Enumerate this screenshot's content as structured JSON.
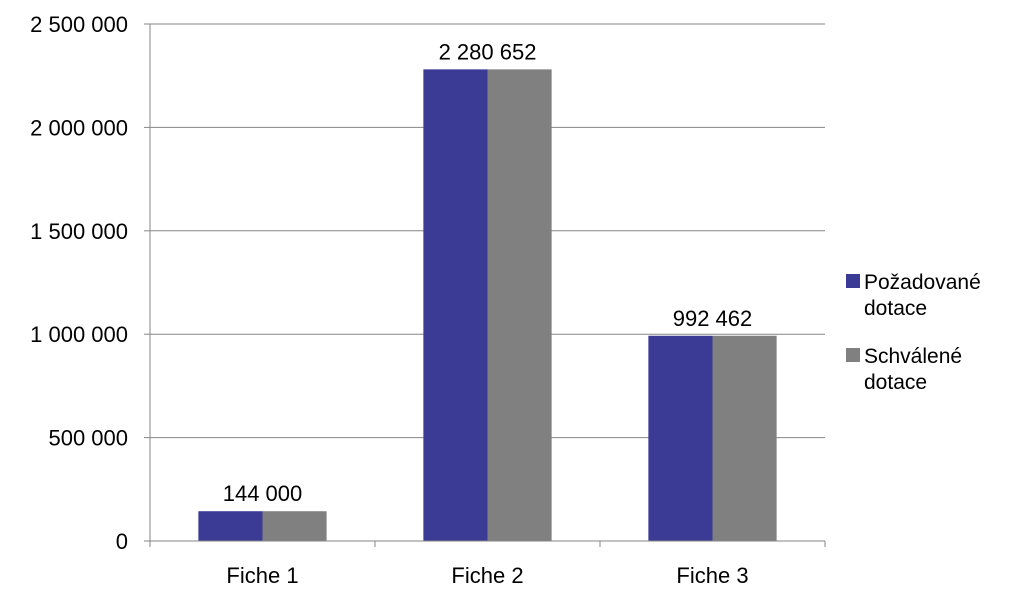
{
  "chart_data": {
    "type": "bar",
    "title": "",
    "xlabel": "",
    "ylabel": "",
    "categories": [
      "Fiche 1",
      "Fiche 2",
      "Fiche 3"
    ],
    "series": [
      {
        "name": "Požadované dotace",
        "legend_lines": [
          "Požadované",
          "dotace"
        ],
        "values": [
          144000,
          2280652,
          992462
        ],
        "color": "#3b3a94"
      },
      {
        "name": "Schválené dotace",
        "legend_lines": [
          "Schválené",
          "dotace"
        ],
        "values": [
          144000,
          2280652,
          992462
        ],
        "color": "#808080"
      }
    ],
    "data_labels": [
      "144 000",
      "2 280 652",
      "992 462"
    ],
    "ylim": [
      0,
      2500000
    ],
    "yticks": [
      0,
      500000,
      1000000,
      1500000,
      2000000,
      2500000
    ],
    "ytick_labels": [
      "0",
      "500 000",
      "1 000 000",
      "1 500 000",
      "2 000 000",
      "2 500 000"
    ],
    "grid": true,
    "legend_position": "right"
  }
}
